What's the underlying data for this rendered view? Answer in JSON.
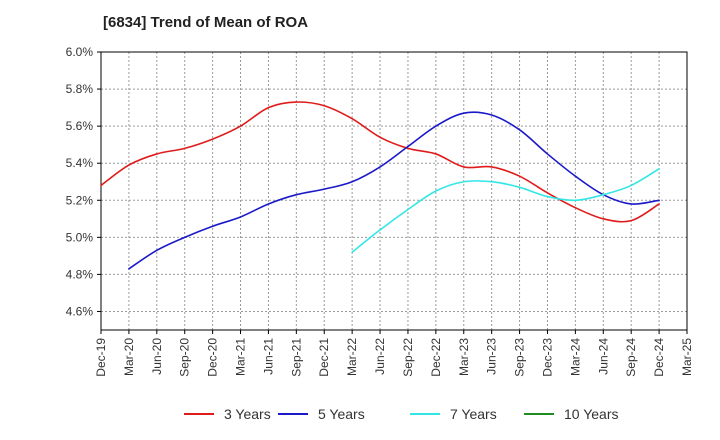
{
  "chart_data": {
    "type": "line",
    "title": "[6834]  Trend of Mean of ROA",
    "xlabel": "",
    "ylabel": "",
    "y_unit": "%",
    "ylim": [
      4.5,
      6.0
    ],
    "y_ticks": [
      "4.6%",
      "4.8%",
      "5.0%",
      "5.2%",
      "5.4%",
      "5.6%",
      "5.8%",
      "6.0%"
    ],
    "y_tick_values": [
      4.6,
      4.8,
      5.0,
      5.2,
      5.4,
      5.6,
      5.8,
      6.0
    ],
    "x_ticks": [
      "Dec-19",
      "Mar-20",
      "Jun-20",
      "Sep-20",
      "Dec-20",
      "Mar-21",
      "Jun-21",
      "Sep-21",
      "Dec-21",
      "Mar-22",
      "Jun-22",
      "Sep-22",
      "Dec-22",
      "Mar-23",
      "Jun-23",
      "Sep-23",
      "Dec-23",
      "Mar-24",
      "Jun-24",
      "Sep-24",
      "Dec-24",
      "Mar-25"
    ],
    "grid": true,
    "legend_position": "bottom",
    "series": [
      {
        "name": "3 Years",
        "color": "#e01b1b",
        "start_index": 0,
        "values": [
          5.28,
          5.39,
          5.45,
          5.48,
          5.53,
          5.6,
          5.7,
          5.73,
          5.71,
          5.64,
          5.54,
          5.48,
          5.45,
          5.38,
          5.38,
          5.33,
          5.24,
          5.16,
          5.1,
          5.09,
          5.18
        ]
      },
      {
        "name": "5 Years",
        "color": "#1a1ac8",
        "start_index": 1,
        "values": [
          4.83,
          4.93,
          5.0,
          5.06,
          5.11,
          5.18,
          5.23,
          5.26,
          5.3,
          5.38,
          5.49,
          5.6,
          5.67,
          5.66,
          5.58,
          5.45,
          5.33,
          5.23,
          5.18,
          5.2
        ]
      },
      {
        "name": "7 Years",
        "color": "#33e6e6",
        "start_index": 9,
        "values": [
          4.92,
          5.04,
          5.15,
          5.25,
          5.3,
          5.3,
          5.27,
          5.22,
          5.2,
          5.23,
          5.28,
          5.37
        ]
      },
      {
        "name": "10 Years",
        "color": "#1f8c1f",
        "start_index": 0,
        "values": []
      }
    ]
  }
}
